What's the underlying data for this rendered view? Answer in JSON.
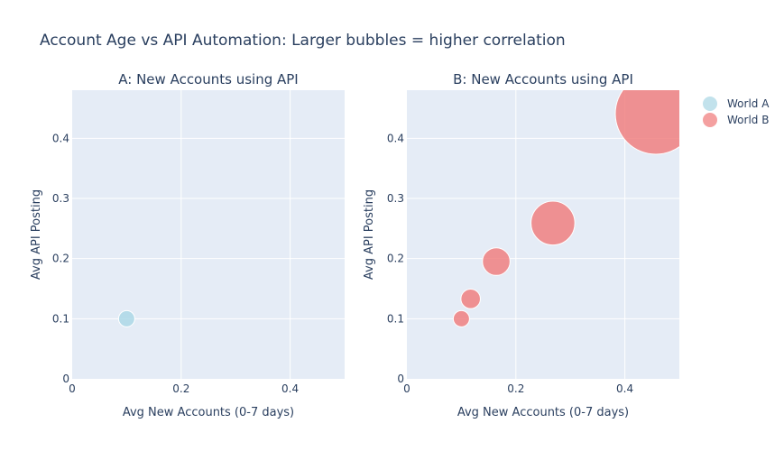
{
  "figure": {
    "title": "Account Age vs API Automation: Larger bubbles = higher correlation"
  },
  "legend": {
    "items": [
      {
        "name": "World A",
        "color": "#ADD8E6"
      },
      {
        "name": "World B",
        "color": "#F08080"
      }
    ],
    "placement": "top-right"
  },
  "chart_data": [
    {
      "type": "scatter",
      "title": "A: New Accounts using API",
      "xlabel": "Avg New Accounts (0-7 days)",
      "ylabel": "Avg API Posting",
      "xlim": [
        0,
        0.5
      ],
      "ylim": [
        0,
        0.48
      ],
      "xticks": [
        0,
        0.2,
        0.4
      ],
      "yticks": [
        0,
        0.1,
        0.2,
        0.3,
        0.4
      ],
      "xtick_labels": [
        "0",
        "0.2",
        "0.4"
      ],
      "ytick_labels": [
        "0",
        "0.1",
        "0.2",
        "0.3",
        "0.4"
      ],
      "grid": true,
      "series": [
        {
          "name": "World A",
          "color": "#ADD8E6",
          "points": [
            {
              "x": 0.1,
              "y": 0.1,
              "size": 0.1
            }
          ]
        }
      ]
    },
    {
      "type": "scatter",
      "title": "B: New Accounts using API",
      "xlabel": "Avg New Accounts (0-7 days)",
      "ylabel": "Avg API Posting",
      "xlim": [
        0,
        0.5
      ],
      "ylim": [
        0,
        0.48
      ],
      "xticks": [
        0,
        0.2,
        0.4
      ],
      "yticks": [
        0,
        0.1,
        0.2,
        0.3,
        0.4
      ],
      "xtick_labels": [
        "0",
        "0.2",
        "0.4"
      ],
      "ytick_labels": [
        "0",
        "0.1",
        "0.2",
        "0.3",
        "0.4"
      ],
      "grid": true,
      "series": [
        {
          "name": "World B",
          "color": "#F08080",
          "points": [
            {
              "x": 0.1,
              "y": 0.1,
              "size": 0.1
            },
            {
              "x": 0.117,
              "y": 0.133,
              "size": 0.12
            },
            {
              "x": 0.164,
              "y": 0.195,
              "size": 0.17
            },
            {
              "x": 0.268,
              "y": 0.259,
              "size": 0.27
            },
            {
              "x": 0.457,
              "y": 0.441,
              "size": 0.5
            }
          ]
        }
      ]
    }
  ]
}
